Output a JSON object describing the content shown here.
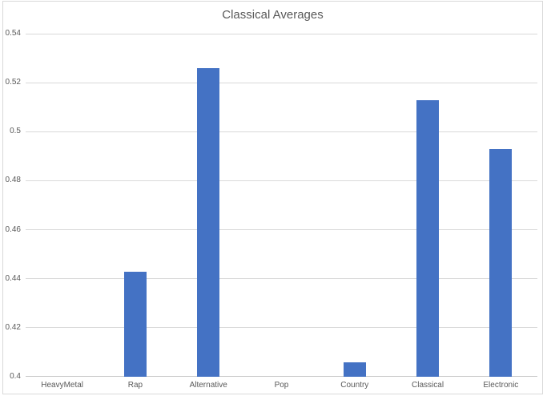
{
  "window": {
    "background": "#ffffff",
    "border_color": "#d9d9d9"
  },
  "chart_data": {
    "type": "bar",
    "title": "Classical Averages",
    "categories": [
      "HeavyMetal",
      "Rap",
      "Alternative",
      "Pop",
      "Country",
      "Classical",
      "Electronic"
    ],
    "values": [
      0.4,
      0.443,
      0.526,
      0.4,
      0.406,
      0.513,
      0.493
    ],
    "xlabel": "",
    "ylabel": "",
    "ylim": [
      0.4,
      0.54
    ],
    "ytick_step": 0.02,
    "ytick_labels": [
      "0.4",
      "0.42",
      "0.44",
      "0.46",
      "0.48",
      "0.5",
      "0.52",
      "0.54"
    ],
    "grid": "horizontal",
    "legend": "none",
    "bar_color": "#4472C4",
    "gridline_color": "#d9d9d9",
    "axis_line_color": "#c9c9c9",
    "text_color": "#595959"
  }
}
